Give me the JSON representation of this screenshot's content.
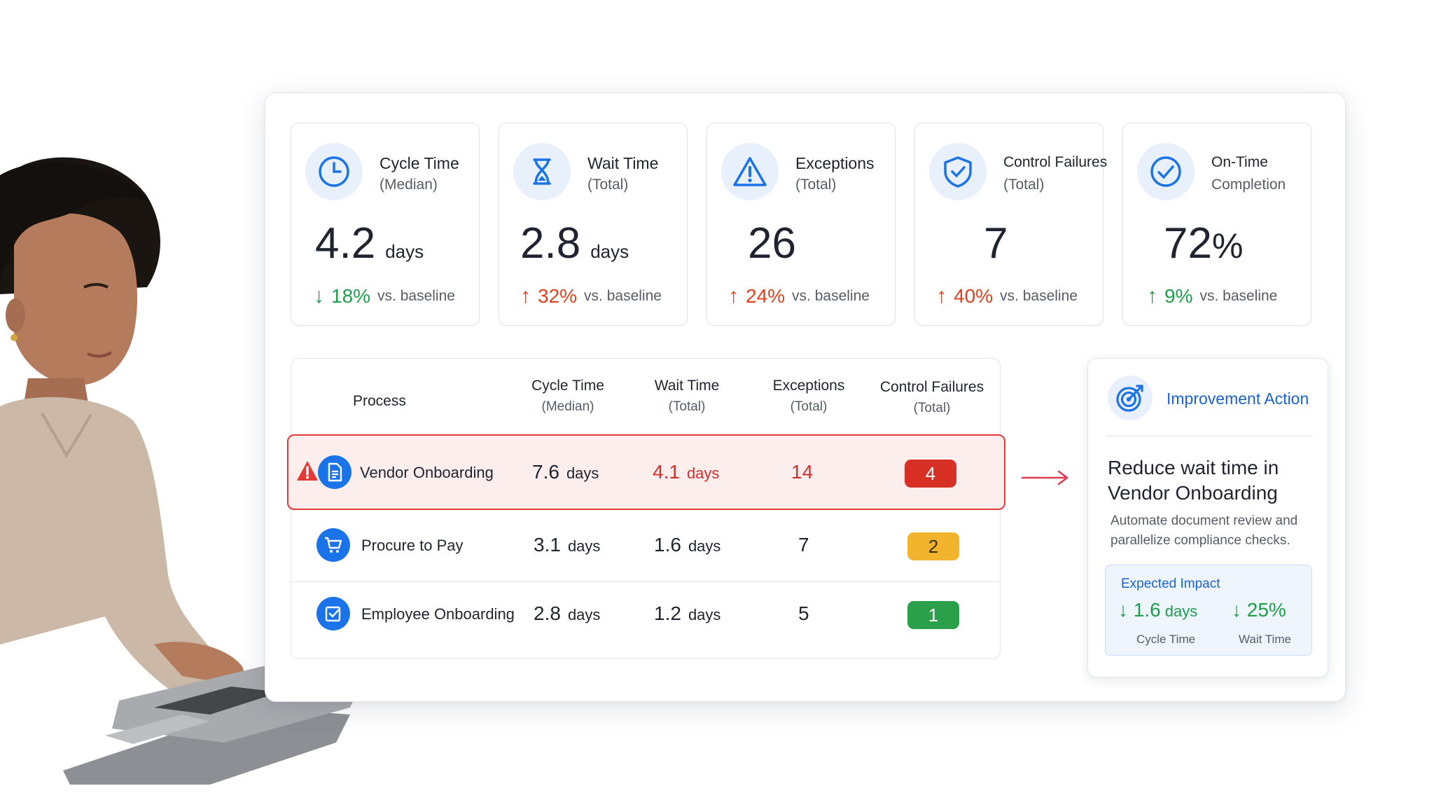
{
  "kpis": [
    {
      "title": "Cycle Time",
      "subtitle": "(Median)",
      "value": "4.2",
      "unit": "days",
      "delta_dir": "down",
      "delta": "18%",
      "delta_suffix": "vs. baseline",
      "delta_color": "#1e9e4a",
      "icon": "clock-icon"
    },
    {
      "title": "Wait Time",
      "subtitle": "(Total)",
      "value": "2.8",
      "unit": "days",
      "delta_dir": "up",
      "delta": "32%",
      "delta_suffix": "vs. baseline",
      "delta_color": "#e0401f",
      "icon": "hourglass-icon"
    },
    {
      "title": "Exceptions",
      "subtitle": "(Total)",
      "value": "26",
      "unit": "",
      "delta_dir": "up",
      "delta": "24%",
      "delta_suffix": "vs. baseline",
      "delta_color": "#e0401f",
      "icon": "warning-icon"
    },
    {
      "title": "Control Failures",
      "subtitle": "(Total)",
      "value": "7",
      "unit": "",
      "delta_dir": "up",
      "delta": "40%",
      "delta_suffix": "vs. baseline",
      "delta_color": "#e0401f",
      "icon": "shield-icon"
    },
    {
      "title": "On-Time",
      "subtitle": "Completion",
      "value": "72",
      "unit": "%",
      "delta_dir": "up",
      "delta": "9%",
      "delta_suffix": "vs. baseline",
      "delta_color": "#1e9e4a",
      "icon": "check-circle-icon"
    }
  ],
  "table": {
    "headers": {
      "process": "Process",
      "cycle": "Cycle Time",
      "cycle_sub": "(Median)",
      "wait": "Wait Time",
      "wait_sub": "(Total)",
      "exceptions": "Exceptions",
      "exceptions_sub": "(Total)",
      "control": "Control Failures",
      "control_sub": "(Total)"
    },
    "rows": [
      {
        "name": "Vendor Onboarding",
        "cycle": "7.6",
        "wait": "4.1",
        "unit": "days",
        "exceptions": "14",
        "control": "4",
        "badge_color": "#d93025",
        "icon": "document-icon",
        "highlighted": true
      },
      {
        "name": "Procure to Pay",
        "cycle": "3.1",
        "wait": "1.6",
        "unit": "days",
        "exceptions": "7",
        "control": "2",
        "badge_color": "#f2b42d",
        "icon": "cart-icon",
        "highlighted": false
      },
      {
        "name": "Employee Onboarding",
        "cycle": "2.8",
        "wait": "1.2",
        "unit": "days",
        "exceptions": "5",
        "control": "1",
        "badge_color": "#2aa04a",
        "icon": "checkbox-icon",
        "highlighted": false
      }
    ]
  },
  "action": {
    "title": "Improvement Action",
    "headline": "Reduce wait time in Vendor Onboarding",
    "description": "Automate document review and parallelize compliance checks.",
    "impact_title": "Expected Impact",
    "impact": [
      {
        "value": "1.6",
        "unit": "days",
        "label": "Cycle Time"
      },
      {
        "value": "25%",
        "unit": "",
        "label": "Wait Time"
      }
    ]
  },
  "colors": {
    "accent": "#1a73e8",
    "green": "#1e9e4a",
    "red": "#e0401f",
    "alert": "#e53935"
  }
}
